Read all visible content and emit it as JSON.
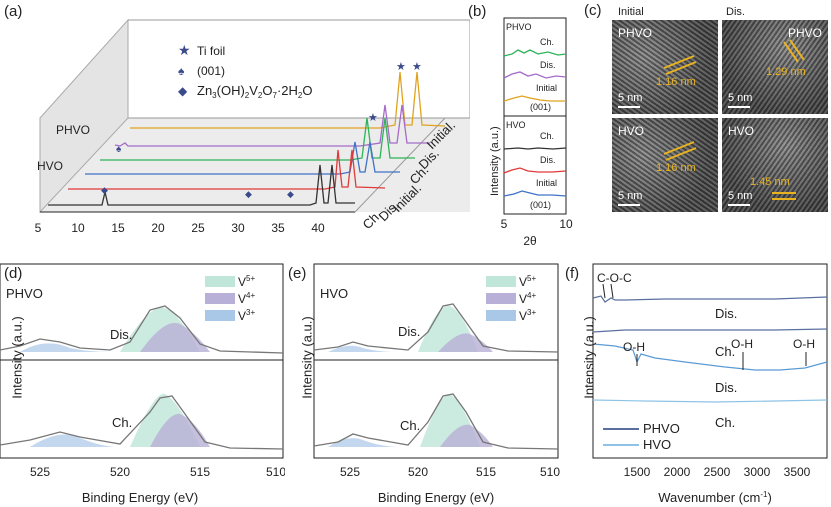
{
  "panels": {
    "a": "(a)",
    "b": "(b)",
    "c": "(c)",
    "d": "(d)",
    "e": "(e)",
    "f": "(f)"
  },
  "panel_a": {
    "legend": [
      "Ti foil",
      "(001)",
      "Zn3(OH)2V2O7·2H2O"
    ],
    "legend_sub": {
      "zn": "Zn",
      "sub3": "3",
      "oh": "(OH)",
      "sub2a": "2",
      "v": "V",
      "sub2b": "2",
      "o": "O",
      "sub7": "7",
      "h2o": "·2H",
      "sub2c": "2",
      "o2": "O"
    },
    "sample_labels": [
      "PHVO",
      "HVO"
    ],
    "curve_labels": [
      "Initial.",
      "Dis.",
      "Ch.",
      "Initial.",
      "Dis.",
      "Ch."
    ],
    "x_ticks": [
      "5",
      "10",
      "15",
      "20",
      "25",
      "30",
      "35",
      "40"
    ]
  },
  "panel_b": {
    "ylabel": "Intensity (a.u.)",
    "xlabel": "2θ",
    "x_ticks": [
      "5",
      "10"
    ],
    "phvo": {
      "title": "PHVO",
      "curves": [
        "Ch.",
        "Dis.",
        "Initial"
      ],
      "note": "(001)"
    },
    "hvo": {
      "title": "HVO",
      "curves": [
        "Ch.",
        "Dis.",
        "Initial"
      ],
      "note": "(001)"
    }
  },
  "panel_c": {
    "col_titles": [
      "Initial",
      "Dis."
    ],
    "images": [
      {
        "sample": "PHVO",
        "spacing": "1.16 nm",
        "scale": "5 nm"
      },
      {
        "sample": "PHVO",
        "spacing": "1.29 nm",
        "scale": "5 nm"
      },
      {
        "sample": "HVO",
        "spacing": "1.16 nm",
        "scale": "5 nm"
      },
      {
        "sample": "HVO",
        "spacing": "1.45 nm",
        "scale": "5 nm"
      }
    ]
  },
  "panel_d": {
    "sample": "PHVO",
    "legend": [
      "V5+",
      "V4+",
      "V3+"
    ],
    "legend_base": "V",
    "legend_sup": [
      "5+",
      "4+",
      "3+"
    ],
    "curves": [
      "Dis.",
      "Ch."
    ],
    "ylabel": "Intensity (a.u.)",
    "xlabel": "Binding Energy (eV)",
    "x_ticks": [
      "525",
      "520",
      "515",
      "510"
    ]
  },
  "panel_e": {
    "sample": "HVO",
    "legend": [
      "V5+",
      "V4+",
      "V3+"
    ],
    "legend_base": "V",
    "legend_sup": [
      "5+",
      "4+",
      "3+"
    ],
    "curves": [
      "Dis.",
      "Ch."
    ],
    "ylabel": "Intensity (a.u.)",
    "xlabel": "Binding Energy (eV)",
    "x_ticks": [
      "525",
      "520",
      "515",
      "510"
    ]
  },
  "panel_f": {
    "annotations": [
      "C-O-C",
      "O-H",
      "O-H",
      "O-H"
    ],
    "curves": [
      "Dis.",
      "Ch.",
      "Dis.",
      "Ch."
    ],
    "legend": [
      "PHVO",
      "HVO"
    ],
    "ylabel": "Intensity (a.u.)",
    "xlabel": "Wavenumber (cm",
    "xlabel_sup": "-1",
    "xlabel_end": ")",
    "x_ticks": [
      "1500",
      "2000",
      "2500",
      "3000",
      "3500"
    ]
  },
  "colors": {
    "orange": "#e0a31f",
    "purple": "#a56bc8",
    "green": "#2db35a",
    "blue": "#3f73c7",
    "red": "#e03a3a",
    "black": "#333333",
    "v5": "#bfe6d8",
    "v4": "#b8b0d6",
    "v3": "#a9c8e8"
  }
}
